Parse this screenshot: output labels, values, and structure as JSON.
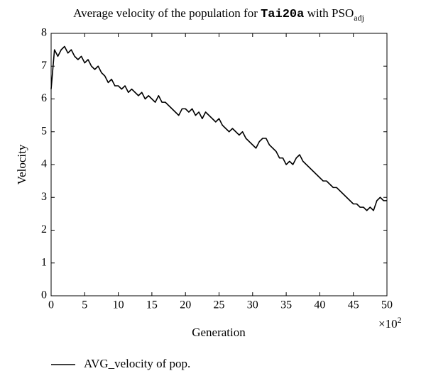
{
  "chart_data": {
    "type": "line",
    "title": [
      "Average velocity of the population for ",
      "Tai20a",
      " with PSO",
      "adj"
    ],
    "x_label": "Generation",
    "y_label": "Velocity",
    "x_multiplier": [
      "×10",
      "2"
    ],
    "x": [
      0,
      0.5,
      1,
      1.5,
      2,
      2.5,
      3,
      3.5,
      4,
      4.5,
      5,
      5.5,
      6,
      6.5,
      7,
      7.5,
      8,
      8.5,
      9,
      9.5,
      10,
      10.5,
      11,
      11.5,
      12,
      12.5,
      13,
      13.5,
      14,
      14.5,
      15,
      15.5,
      16,
      16.5,
      17,
      17.5,
      18,
      18.5,
      19,
      19.5,
      20,
      20.5,
      21,
      21.5,
      22,
      22.5,
      23,
      23.5,
      24,
      24.5,
      25,
      25.5,
      26,
      26.5,
      27,
      27.5,
      28,
      28.5,
      29,
      29.5,
      30,
      30.5,
      31,
      31.5,
      32,
      32.5,
      33,
      33.5,
      34,
      34.5,
      35,
      35.5,
      36,
      36.5,
      37,
      37.5,
      38,
      38.5,
      39,
      39.5,
      40,
      40.5,
      41,
      41.5,
      42,
      42.5,
      43,
      43.5,
      44,
      44.5,
      45,
      45.5,
      46,
      46.5,
      47,
      47.5,
      48,
      48.5,
      49,
      49.5,
      50
    ],
    "series": [
      {
        "name": "AVG_velocity of pop.",
        "color": "#000000",
        "values": [
          6.3,
          7.5,
          7.3,
          7.5,
          7.6,
          7.4,
          7.5,
          7.3,
          7.2,
          7.3,
          7.1,
          7.2,
          7.0,
          6.9,
          7.0,
          6.8,
          6.7,
          6.5,
          6.6,
          6.4,
          6.4,
          6.3,
          6.4,
          6.2,
          6.3,
          6.2,
          6.1,
          6.2,
          6.0,
          6.1,
          6.0,
          5.9,
          6.1,
          5.9,
          5.9,
          5.8,
          5.7,
          5.6,
          5.5,
          5.7,
          5.7,
          5.6,
          5.7,
          5.5,
          5.6,
          5.4,
          5.6,
          5.5,
          5.4,
          5.3,
          5.4,
          5.2,
          5.1,
          5.0,
          5.1,
          5.0,
          4.9,
          5.0,
          4.8,
          4.7,
          4.6,
          4.5,
          4.7,
          4.8,
          4.8,
          4.6,
          4.5,
          4.4,
          4.2,
          4.2,
          4.0,
          4.1,
          4.0,
          4.2,
          4.3,
          4.1,
          4.0,
          3.9,
          3.8,
          3.7,
          3.6,
          3.5,
          3.5,
          3.4,
          3.3,
          3.3,
          3.2,
          3.1,
          3.0,
          2.9,
          2.8,
          2.8,
          2.7,
          2.7,
          2.6,
          2.7,
          2.6,
          2.9,
          3.0,
          2.9,
          2.9
        ]
      }
    ],
    "xlim": [
      0,
      50
    ],
    "xticks": [
      0,
      5,
      10,
      15,
      20,
      25,
      30,
      35,
      40,
      45,
      50
    ],
    "ylim": [
      0,
      8
    ],
    "yticks": [
      0,
      1,
      2,
      3,
      4,
      5,
      6,
      7,
      8
    ],
    "legend": "bottom-left"
  }
}
